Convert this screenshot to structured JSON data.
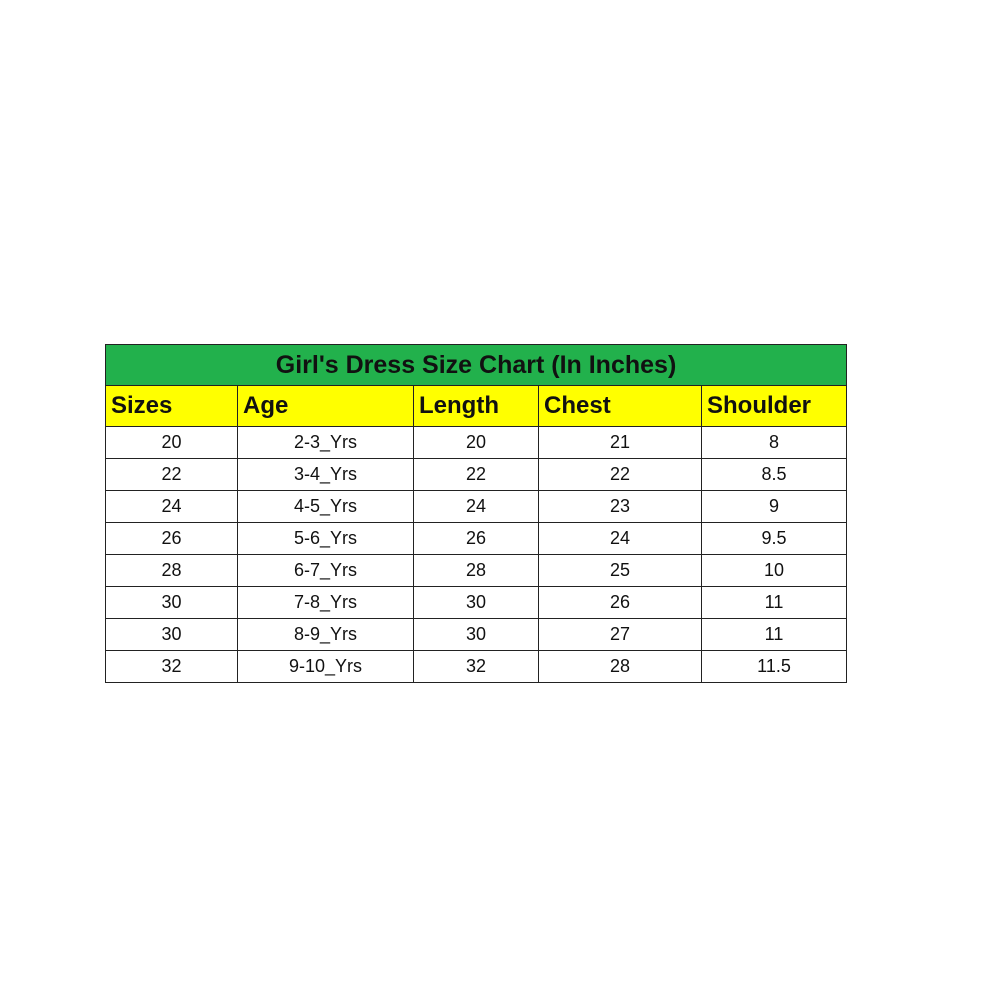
{
  "colors": {
    "title_bg": "#22b14c",
    "header_bg": "#ffff00"
  },
  "table": {
    "title": "Girl's Dress Size Chart (In Inches)",
    "columns": [
      "Sizes",
      "Age",
      "Length",
      "Chest",
      "Shoulder"
    ],
    "rows": [
      [
        "20",
        "2-3_Yrs",
        "20",
        "21",
        "8"
      ],
      [
        "22",
        "3-4_Yrs",
        "22",
        "22",
        "8.5"
      ],
      [
        "24",
        "4-5_Yrs",
        "24",
        "23",
        "9"
      ],
      [
        "26",
        "5-6_Yrs",
        "26",
        "24",
        "9.5"
      ],
      [
        "28",
        "6-7_Yrs",
        "28",
        "25",
        "10"
      ],
      [
        "30",
        "7-8_Yrs",
        "30",
        "26",
        "11"
      ],
      [
        "30",
        "8-9_Yrs",
        "30",
        "27",
        "11"
      ],
      [
        "32",
        "9-10_Yrs",
        "32",
        "28",
        "11.5"
      ]
    ]
  }
}
